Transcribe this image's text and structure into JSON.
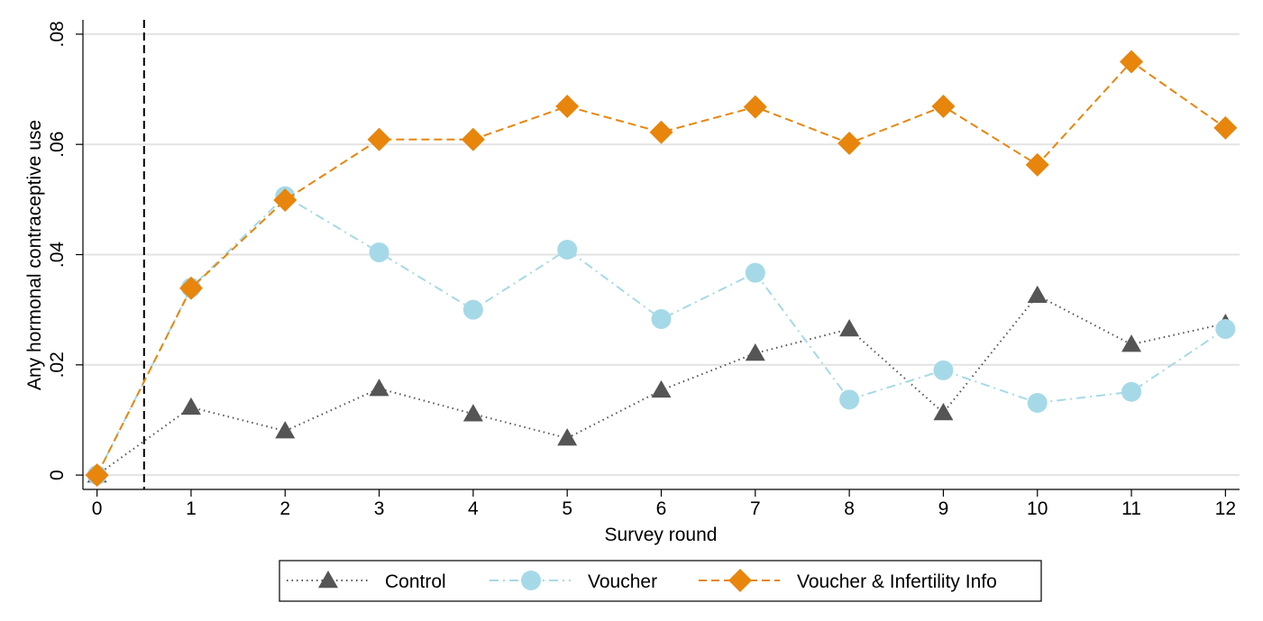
{
  "chart_data": {
    "type": "line",
    "x_label": "Survey round",
    "y_label": "Any hormonal contraceptive use",
    "x": [
      0,
      1,
      2,
      3,
      4,
      5,
      6,
      7,
      8,
      9,
      10,
      11,
      12
    ],
    "xlim": [
      -0.15,
      12.15
    ],
    "xticks": [
      0,
      1,
      2,
      3,
      4,
      5,
      6,
      7,
      8,
      9,
      10,
      11,
      12
    ],
    "ylim": [
      -0.0026,
      0.0826
    ],
    "yticks": [
      0,
      {
        "value": 0.02,
        "label": ".02"
      },
      {
        "value": 0.04,
        "label": ".04"
      },
      {
        "value": 0.06,
        "label": ".06"
      },
      {
        "value": 0.08,
        "label": ".08"
      }
    ],
    "grid": true,
    "xline": 0.5,
    "legend": "bottom",
    "series": [
      {
        "name": "Control",
        "color": "#555555",
        "marker": "triangle",
        "line_style": "dotted",
        "values": [
          0,
          0.0123,
          0.008,
          0.0157,
          0.0111,
          0.0067,
          0.0154,
          0.0221,
          0.0265,
          0.0113,
          0.0326,
          0.0237,
          0.0275
        ]
      },
      {
        "name": "Voucher",
        "color": "#a6d9e8",
        "marker": "circle",
        "line_style": "dashdot",
        "values": [
          0,
          0.034,
          0.0506,
          0.0404,
          0.03,
          0.0409,
          0.0283,
          0.0367,
          0.0137,
          0.019,
          0.0131,
          0.0151,
          0.0265
        ]
      },
      {
        "name": "Voucher & Infertility Info",
        "color": "#e8850c",
        "marker": "diamond",
        "line_style": "dashed",
        "values": [
          0,
          0.0339,
          0.0499,
          0.0609,
          0.0609,
          0.0669,
          0.0622,
          0.0668,
          0.0602,
          0.0669,
          0.0563,
          0.075,
          0.063
        ]
      }
    ]
  }
}
